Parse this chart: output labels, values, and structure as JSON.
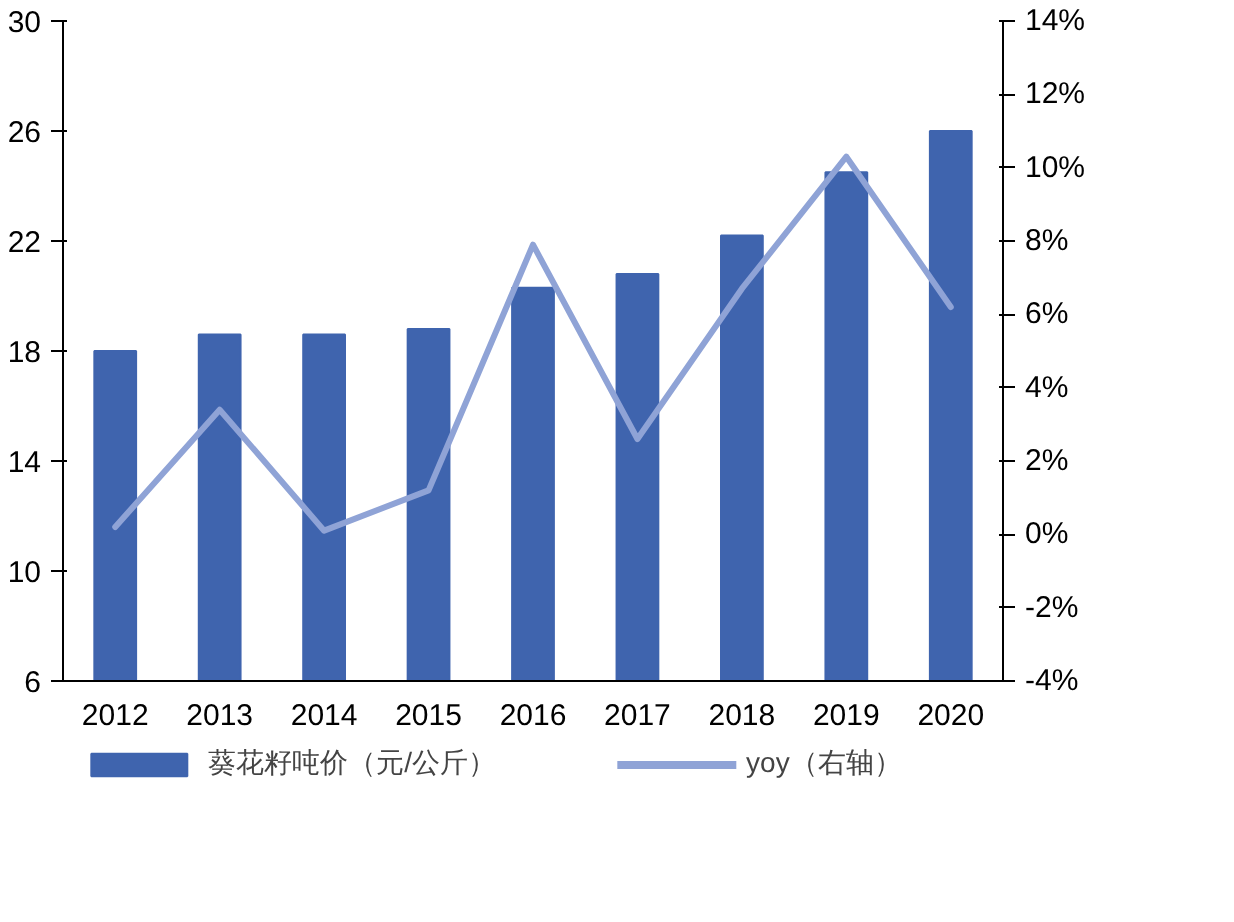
{
  "chart_data": {
    "type": "bar",
    "categories": [
      "2012",
      "2013",
      "2014",
      "2015",
      "2016",
      "2017",
      "2018",
      "2019",
      "2020"
    ],
    "series": [
      {
        "name": "葵花籽吨价（元/公斤）",
        "color": "#3f64ae",
        "values": [
          18.0,
          18.6,
          18.6,
          18.8,
          20.3,
          20.8,
          22.2,
          24.5,
          26.0
        ]
      },
      {
        "name": "yoy（右轴）",
        "type": "line",
        "axis": "y2",
        "color": "#8fa3d6",
        "values": [
          0.2,
          3.4,
          0.1,
          1.2,
          7.9,
          2.6,
          6.7,
          10.3,
          6.2
        ]
      }
    ],
    "ylim": [
      6,
      30
    ],
    "yticks": [
      6,
      10,
      14,
      18,
      22,
      26,
      30
    ],
    "y2lim": [
      -4,
      14
    ],
    "y2ticks": [
      {
        "value": -4,
        "label": "-4%"
      },
      {
        "value": -2,
        "label": "-2%"
      },
      {
        "value": 0,
        "label": "0%"
      },
      {
        "value": 2,
        "label": "2%"
      },
      {
        "value": 4,
        "label": "4%"
      },
      {
        "value": 6,
        "label": "6%"
      },
      {
        "value": 8,
        "label": "8%"
      },
      {
        "value": 10,
        "label": "10%"
      },
      {
        "value": 12,
        "label": "12%"
      },
      {
        "value": 14,
        "label": "14%"
      }
    ],
    "grid": false,
    "legend": "bottom",
    "marker": "none",
    "line_style": "solid"
  }
}
